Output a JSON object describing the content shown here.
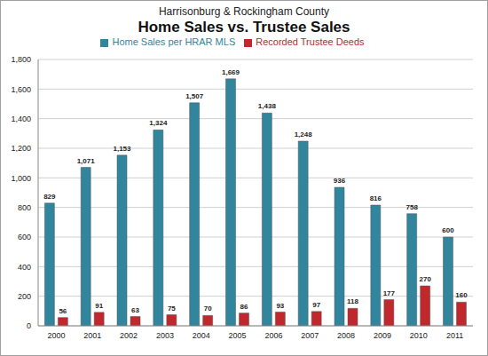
{
  "chart_data": {
    "type": "bar",
    "title": "Home Sales vs. Trustee Sales",
    "subtitle": "Harrisonburg & Rockingham County",
    "categories": [
      "2000",
      "2001",
      "2002",
      "2003",
      "2004",
      "2005",
      "2006",
      "2007",
      "2008",
      "2009",
      "2010",
      "2011"
    ],
    "series": [
      {
        "name": "Home Sales per HRAR MLS",
        "color": "#31859c",
        "values": [
          829,
          1071,
          1153,
          1324,
          1507,
          1669,
          1438,
          1248,
          936,
          816,
          758,
          600
        ],
        "value_labels": [
          "829",
          "1,071",
          "1,153",
          "1,324",
          "1,507",
          "1,669",
          "1,438",
          "1,248",
          "936",
          "816",
          "758",
          "600"
        ]
      },
      {
        "name": "Recorded Trustee Deeds",
        "color": "#c0282d",
        "values": [
          56,
          91,
          63,
          75,
          70,
          86,
          93,
          97,
          118,
          177,
          270,
          160
        ],
        "value_labels": [
          "56",
          "91",
          "63",
          "75",
          "70",
          "86",
          "93",
          "97",
          "118",
          "177",
          "270",
          "160"
        ]
      }
    ],
    "ylim": [
      0,
      1800
    ],
    "yticks": [
      0,
      200,
      400,
      600,
      800,
      {
        "value": 1000,
        "label": "1,000"
      },
      {
        "value": 1200,
        "label": "1,200"
      },
      {
        "value": 1400,
        "label": "1,400"
      },
      {
        "value": 1600,
        "label": "1,600"
      },
      {
        "value": 1800,
        "label": "1,800"
      }
    ],
    "grid": true,
    "legend": "top",
    "data_labels": true
  }
}
